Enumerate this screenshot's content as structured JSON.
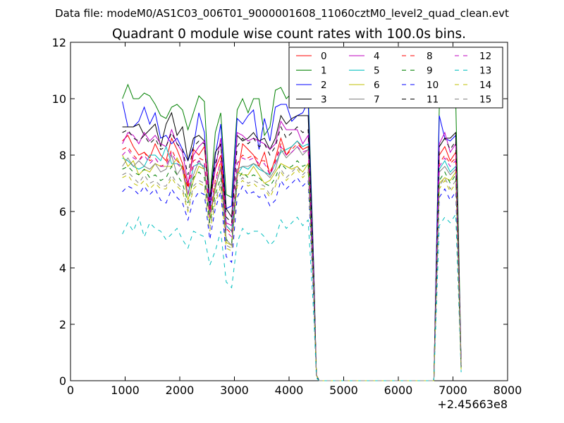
{
  "suptitle": "Data file: modeM0/AS1C03_006T01_9000001608_11060cztM0_level2_quad_clean.evt",
  "chart_data": {
    "type": "line",
    "title": "Quadrant 0 module wise count rates with 100.0s bins.",
    "xlabel": "",
    "ylabel": "",
    "x_offset_label": "+2.45663e8",
    "xlim": [
      0,
      8000
    ],
    "ylim": [
      0,
      12
    ],
    "x_ticks": [
      0,
      1000,
      2000,
      3000,
      4000,
      5000,
      6000,
      7000,
      8000
    ],
    "y_ticks": [
      0,
      2,
      4,
      6,
      8,
      10,
      12
    ],
    "grid": false,
    "legend_position": "upper-right",
    "legend_columns": 4,
    "x": [
      950,
      1050,
      1150,
      1250,
      1350,
      1450,
      1550,
      1650,
      1750,
      1850,
      1950,
      2050,
      2150,
      2250,
      2350,
      2450,
      2550,
      2650,
      2750,
      2850,
      2950,
      3050,
      3150,
      3250,
      3350,
      3450,
      3550,
      3650,
      3750,
      3850,
      3950,
      4050,
      4150,
      4250,
      4350,
      4450,
      4500,
      4550,
      4650,
      4750,
      4850,
      4950,
      5050,
      5150,
      5250,
      5350,
      5450,
      5550,
      5650,
      5750,
      5850,
      5950,
      6050,
      6150,
      6250,
      6350,
      6450,
      6550,
      6650,
      6750,
      6850,
      6950,
      7050,
      7150
    ],
    "series": [
      {
        "name": "0",
        "color": "#ff0000",
        "dash": "solid",
        "values": [
          8.5,
          8.7,
          8.3,
          8.0,
          8.1,
          7.9,
          8.4,
          8.0,
          7.8,
          8.6,
          8.2,
          7.7,
          6.9,
          8.2,
          8.0,
          8.3,
          6.2,
          7.5,
          8.0,
          5.5,
          5.3,
          7.2,
          8.4,
          8.2,
          8.0,
          7.6,
          8.1,
          7.3,
          7.9,
          8.6,
          8.0,
          8.3,
          8.5,
          8.2,
          8.3,
          3.4,
          0.2,
          0,
          0,
          0,
          0,
          0,
          0,
          0,
          0,
          0,
          0,
          0,
          0,
          0,
          0,
          0,
          0,
          0,
          0,
          0,
          0,
          0,
          0,
          8.0,
          8.3,
          7.8,
          8.1,
          0.5
        ]
      },
      {
        "name": "1",
        "color": "#008000",
        "dash": "solid",
        "values": [
          10.0,
          10.5,
          10.0,
          10.0,
          10.2,
          10.1,
          9.8,
          9.4,
          9.3,
          9.7,
          9.8,
          9.6,
          8.9,
          9.5,
          10.1,
          9.9,
          6.4,
          8.8,
          9.5,
          6.6,
          6.5,
          9.6,
          10.0,
          9.5,
          10.0,
          10.0,
          8.7,
          9.0,
          10.3,
          10.4,
          10.0,
          10.2,
          10.3,
          10.3,
          10.3,
          4.2,
          0.2,
          0,
          0,
          0,
          0,
          0,
          0,
          0,
          0,
          0,
          0,
          0,
          0,
          0,
          0,
          0,
          0,
          0,
          0,
          0,
          0,
          0,
          0,
          9.7,
          10.0,
          10.0,
          10.0,
          0.6
        ]
      },
      {
        "name": "2",
        "color": "#0000ff",
        "dash": "solid",
        "values": [
          9.9,
          9.0,
          9.0,
          9.2,
          9.7,
          9.1,
          9.5,
          8.6,
          8.7,
          8.4,
          8.6,
          8.2,
          7.8,
          8.3,
          9.5,
          8.8,
          6.0,
          8.0,
          9.1,
          6.1,
          6.2,
          9.3,
          9.1,
          9.4,
          9.6,
          8.2,
          9.3,
          8.5,
          9.7,
          9.8,
          9.8,
          9.2,
          9.4,
          9.5,
          9.9,
          4.0,
          0.2,
          0,
          0,
          0,
          0,
          0,
          0,
          0,
          0,
          0,
          0,
          0,
          0,
          0,
          0,
          0,
          0,
          0,
          0,
          0,
          0,
          0,
          0,
          9.4,
          8.6,
          8.5,
          8.7,
          0.6
        ]
      },
      {
        "name": "3",
        "color": "#000000",
        "dash": "solid",
        "values": [
          9.0,
          9.0,
          9.0,
          9.1,
          8.7,
          8.9,
          9.1,
          8.3,
          9.1,
          9.5,
          8.7,
          9.0,
          7.8,
          8.6,
          8.7,
          8.5,
          6.4,
          8.1,
          8.4,
          6.1,
          5.8,
          8.7,
          8.5,
          8.6,
          8.8,
          8.5,
          8.6,
          8.2,
          8.6,
          9.4,
          9.1,
          9.3,
          9.4,
          9.4,
          9.4,
          3.8,
          0.2,
          0,
          0,
          0,
          0,
          0,
          0,
          0,
          0,
          0,
          0,
          0,
          0,
          0,
          0,
          0,
          0,
          0,
          0,
          0,
          0,
          0,
          0,
          8.3,
          8.6,
          8.6,
          8.8,
          0.5
        ]
      },
      {
        "name": "4",
        "color": "#bf00bf",
        "dash": "solid",
        "values": [
          8.4,
          8.8,
          8.7,
          8.4,
          8.8,
          8.5,
          8.7,
          8.4,
          8.3,
          8.9,
          8.4,
          8.1,
          7.0,
          8.0,
          8.3,
          8.5,
          6.4,
          7.5,
          8.6,
          5.6,
          5.5,
          8.8,
          8.7,
          8.5,
          8.6,
          8.5,
          8.4,
          8.2,
          8.4,
          9.2,
          8.9,
          8.9,
          8.9,
          8.4,
          8.7,
          3.8,
          0.2,
          0,
          0,
          0,
          0,
          0,
          0,
          0,
          0,
          0,
          0,
          0,
          0,
          0,
          0,
          0,
          0,
          0,
          0,
          0,
          0,
          0,
          0,
          8.4,
          8.8,
          8.1,
          8.4,
          0.5
        ]
      },
      {
        "name": "5",
        "color": "#00bfbf",
        "dash": "solid",
        "values": [
          7.9,
          7.8,
          7.6,
          7.5,
          7.6,
          8.0,
          8.0,
          7.8,
          8.3,
          7.7,
          7.7,
          7.6,
          6.6,
          7.6,
          7.7,
          7.6,
          5.7,
          6.8,
          7.6,
          5.5,
          5.3,
          7.3,
          7.6,
          7.5,
          7.7,
          7.5,
          7.4,
          7.3,
          7.7,
          8.1,
          8.2,
          8.3,
          8.5,
          8.3,
          8.4,
          3.5,
          0.2,
          0,
          0,
          0,
          0,
          0,
          0,
          0,
          0,
          0,
          0,
          0,
          0,
          0,
          0,
          0,
          0,
          0,
          0,
          0,
          0,
          0,
          0,
          7.5,
          7.8,
          7.4,
          7.6,
          0.5
        ]
      },
      {
        "name": "6",
        "color": "#bfbf00",
        "dash": "solid",
        "values": [
          8.0,
          7.6,
          7.8,
          7.3,
          7.5,
          7.4,
          7.7,
          7.6,
          7.6,
          7.6,
          7.9,
          7.5,
          6.4,
          7.1,
          7.6,
          7.5,
          5.7,
          6.8,
          7.6,
          4.9,
          4.8,
          7.4,
          7.3,
          7.3,
          7.6,
          7.3,
          7.0,
          7.1,
          7.4,
          7.7,
          7.6,
          7.5,
          7.6,
          7.4,
          7.7,
          3.3,
          0.2,
          0,
          0,
          0,
          0,
          0,
          0,
          0,
          0,
          0,
          0,
          0,
          0,
          0,
          0,
          0,
          0,
          0,
          0,
          0,
          0,
          0,
          0,
          7.0,
          7.2,
          7.1,
          7.4,
          0.4
        ]
      },
      {
        "name": "7",
        "color": "#808080",
        "dash": "solid",
        "values": [
          7.6,
          7.9,
          7.6,
          7.8,
          7.6,
          7.5,
          7.7,
          7.4,
          7.5,
          8.0,
          7.3,
          7.6,
          6.6,
          7.3,
          7.8,
          7.5,
          5.9,
          6.9,
          7.5,
          5.0,
          4.8,
          7.5,
          7.6,
          7.6,
          7.7,
          7.6,
          7.4,
          7.2,
          7.5,
          8.2,
          7.9,
          8.1,
          8.3,
          8.0,
          8.2,
          3.5,
          0.2,
          0,
          0,
          0,
          0,
          0,
          0,
          0,
          0,
          0,
          0,
          0,
          0,
          0,
          0,
          0,
          0,
          0,
          0,
          0,
          0,
          0,
          0,
          7.4,
          7.6,
          7.3,
          7.5,
          0.5
        ]
      },
      {
        "name": "8",
        "color": "#ff0000",
        "dash": "dashed",
        "values": [
          8.2,
          8.3,
          8.0,
          7.8,
          8.1,
          7.8,
          7.9,
          7.6,
          7.7,
          8.2,
          7.8,
          7.6,
          6.8,
          7.8,
          7.9,
          7.8,
          6.0,
          7.1,
          7.8,
          5.4,
          5.2,
          7.7,
          8.0,
          7.9,
          8.0,
          7.8,
          7.8,
          7.4,
          7.8,
          8.4,
          8.0,
          8.2,
          8.4,
          8.2,
          8.3,
          3.4,
          0.2,
          0,
          0,
          0,
          0,
          0,
          0,
          0,
          0,
          0,
          0,
          0,
          0,
          0,
          0,
          0,
          0,
          0,
          0,
          0,
          0,
          0,
          0,
          7.7,
          8.0,
          7.7,
          7.9,
          0.5
        ]
      },
      {
        "name": "9",
        "color": "#008000",
        "dash": "dashed",
        "values": [
          7.5,
          7.6,
          7.4,
          7.3,
          7.5,
          7.2,
          7.3,
          7.1,
          7.2,
          7.6,
          7.3,
          7.0,
          6.3,
          7.2,
          7.4,
          7.2,
          5.6,
          6.6,
          7.2,
          5.0,
          4.9,
          7.1,
          7.4,
          7.2,
          7.3,
          7.2,
          7.0,
          6.9,
          7.2,
          7.7,
          7.5,
          7.6,
          7.8,
          7.6,
          7.7,
          3.2,
          0.2,
          0,
          0,
          0,
          0,
          0,
          0,
          0,
          0,
          0,
          0,
          0,
          0,
          0,
          0,
          0,
          0,
          0,
          0,
          0,
          0,
          0,
          0,
          7.1,
          7.4,
          7.0,
          7.3,
          0.4
        ]
      },
      {
        "name": "10",
        "color": "#0000ff",
        "dash": "dashed",
        "values": [
          6.7,
          6.9,
          6.8,
          6.6,
          6.9,
          6.6,
          6.8,
          6.4,
          6.3,
          6.8,
          6.5,
          6.3,
          5.7,
          6.4,
          6.7,
          6.6,
          5.0,
          6.1,
          6.7,
          4.4,
          4.2,
          6.5,
          6.9,
          6.6,
          6.7,
          6.5,
          6.6,
          6.2,
          6.4,
          7.1,
          6.8,
          7.0,
          7.2,
          6.9,
          7.1,
          2.9,
          0.2,
          0,
          0,
          0,
          0,
          0,
          0,
          0,
          0,
          0,
          0,
          0,
          0,
          0,
          0,
          0,
          0,
          0,
          0,
          0,
          0,
          0,
          0,
          6.5,
          6.8,
          6.4,
          6.7,
          0.4
        ]
      },
      {
        "name": "11",
        "color": "#000000",
        "dash": "dashed",
        "values": [
          8.8,
          8.9,
          8.6,
          8.5,
          8.7,
          8.4,
          8.6,
          8.2,
          8.3,
          8.8,
          8.4,
          8.2,
          7.3,
          8.3,
          8.5,
          8.4,
          6.3,
          7.7,
          8.4,
          5.8,
          5.6,
          8.3,
          8.6,
          8.4,
          8.6,
          8.3,
          8.4,
          8.0,
          8.3,
          9.0,
          8.6,
          8.8,
          9.0,
          8.8,
          8.9,
          3.7,
          0.2,
          0,
          0,
          0,
          0,
          0,
          0,
          0,
          0,
          0,
          0,
          0,
          0,
          0,
          0,
          0,
          0,
          0,
          0,
          0,
          0,
          0,
          0,
          8.3,
          8.6,
          8.2,
          8.5,
          0.5
        ]
      },
      {
        "name": "12",
        "color": "#bf00bf",
        "dash": "dashed",
        "values": [
          8.0,
          8.2,
          7.9,
          7.8,
          8.0,
          7.7,
          7.9,
          7.6,
          7.6,
          8.1,
          7.7,
          7.5,
          6.6,
          7.6,
          7.8,
          7.7,
          5.8,
          7.0,
          7.8,
          5.3,
          5.1,
          7.7,
          7.9,
          7.8,
          7.9,
          7.7,
          7.7,
          7.3,
          7.7,
          8.3,
          8.0,
          8.1,
          8.3,
          8.1,
          8.2,
          3.4,
          0.2,
          0,
          0,
          0,
          0,
          0,
          0,
          0,
          0,
          0,
          0,
          0,
          0,
          0,
          0,
          0,
          0,
          0,
          0,
          0,
          0,
          0,
          0,
          7.6,
          7.9,
          7.6,
          7.8,
          0.5
        ]
      },
      {
        "name": "13",
        "color": "#00bfbf",
        "dash": "dashed",
        "values": [
          5.2,
          5.6,
          5.3,
          5.8,
          5.1,
          5.6,
          5.4,
          5.3,
          5.0,
          5.2,
          5.4,
          5.0,
          4.7,
          5.3,
          5.2,
          5.1,
          4.1,
          4.6,
          5.3,
          3.5,
          3.3,
          4.9,
          5.4,
          5.2,
          5.3,
          5.3,
          5.1,
          4.8,
          5.0,
          5.7,
          5.4,
          5.6,
          5.8,
          5.5,
          5.7,
          2.4,
          0.1,
          0,
          0,
          0,
          0,
          0,
          0,
          0,
          0,
          0,
          0,
          0,
          0,
          0,
          0,
          0,
          0,
          0,
          0,
          0,
          0,
          0,
          0,
          5.5,
          5.8,
          5.6,
          5.9,
          0.3
        ]
      },
      {
        "name": "14",
        "color": "#bfbf00",
        "dash": "dashed",
        "values": [
          7.2,
          7.3,
          7.0,
          6.9,
          7.1,
          6.8,
          7.0,
          6.8,
          6.8,
          7.2,
          6.9,
          6.7,
          6.0,
          6.8,
          7.0,
          6.9,
          5.3,
          6.3,
          6.9,
          4.7,
          4.6,
          6.9,
          7.1,
          6.9,
          7.0,
          6.8,
          6.8,
          6.5,
          6.9,
          7.4,
          7.1,
          7.3,
          7.5,
          7.2,
          7.4,
          3.1,
          0.2,
          0,
          0,
          0,
          0,
          0,
          0,
          0,
          0,
          0,
          0,
          0,
          0,
          0,
          0,
          0,
          0,
          0,
          0,
          0,
          0,
          0,
          0,
          6.8,
          7.1,
          6.7,
          7.0,
          0.4
        ]
      },
      {
        "name": "15",
        "color": "#808080",
        "dash": "dashed",
        "values": [
          7.3,
          7.4,
          7.2,
          7.0,
          7.3,
          7.0,
          7.1,
          6.9,
          6.9,
          7.3,
          7.0,
          6.8,
          6.1,
          6.9,
          7.1,
          7.0,
          5.4,
          6.4,
          7.0,
          4.8,
          4.7,
          7.0,
          7.2,
          7.0,
          7.1,
          7.0,
          6.9,
          6.6,
          7.0,
          7.5,
          7.2,
          7.4,
          7.6,
          7.3,
          7.5,
          3.1,
          0.2,
          0,
          0,
          0,
          0,
          0,
          0,
          0,
          0,
          0,
          0,
          0,
          0,
          0,
          0,
          0,
          0,
          0,
          0,
          0,
          0,
          0,
          0,
          6.9,
          7.2,
          6.8,
          7.1,
          0.4
        ]
      }
    ]
  }
}
